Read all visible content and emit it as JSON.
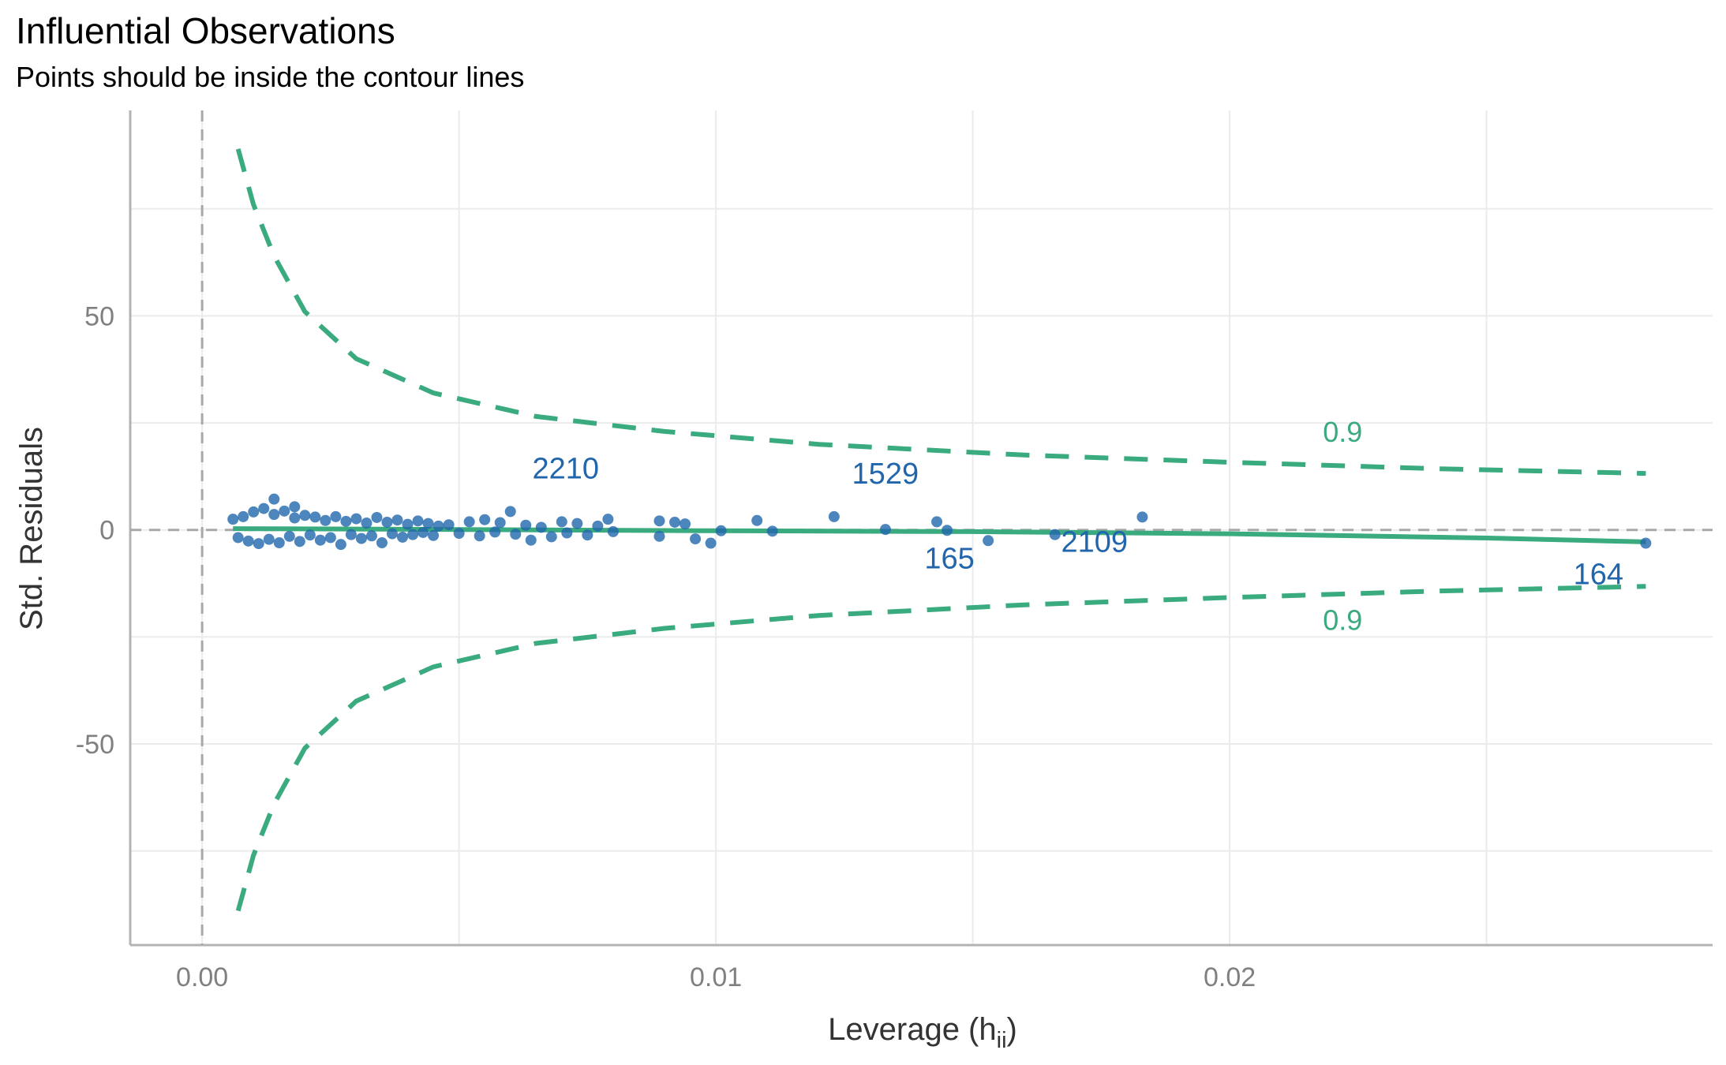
{
  "chart_data": {
    "type": "scatter",
    "title": "Influential Observations",
    "subtitle": "Points should be inside the contour lines",
    "xlabel": "Leverage (h",
    "xlabel_sub": "ii",
    "xlabel_close": ")",
    "ylabel": "Std. Residuals",
    "xlim": [
      -0.0014,
      0.0294
    ],
    "ylim": [
      -97,
      98
    ],
    "x_ticks": [
      0.0,
      0.01,
      0.02
    ],
    "x_tick_labels": [
      "0.00",
      "0.01",
      "0.02"
    ],
    "y_ticks": [
      -50,
      0,
      50
    ],
    "y_tick_labels": [
      "-50",
      "0",
      "50"
    ],
    "grid": true,
    "legend": "none",
    "colors": {
      "points": "#2166ac",
      "label": "#2166ac",
      "contour": "#3aaa7f",
      "fit": "#3aaa7f",
      "reference": "#a8a8a8"
    },
    "points": [
      {
        "x": 0.0006,
        "y": 2.5
      },
      {
        "x": 0.0007,
        "y": -1.8
      },
      {
        "x": 0.0008,
        "y": 3.1
      },
      {
        "x": 0.0009,
        "y": -2.6
      },
      {
        "x": 0.001,
        "y": 4.2
      },
      {
        "x": 0.0011,
        "y": -3.2
      },
      {
        "x": 0.0012,
        "y": 5.0
      },
      {
        "x": 0.0013,
        "y": -2.2
      },
      {
        "x": 0.0014,
        "y": 3.6
      },
      {
        "x": 0.0015,
        "y": -3.0
      },
      {
        "x": 0.0016,
        "y": 4.4
      },
      {
        "x": 0.0017,
        "y": -1.5
      },
      {
        "x": 0.0018,
        "y": 2.8
      },
      {
        "x": 0.0019,
        "y": -2.7
      },
      {
        "x": 0.002,
        "y": 3.4
      },
      {
        "x": 0.0021,
        "y": -1.2
      },
      {
        "x": 0.0014,
        "y": 7.2
      },
      {
        "x": 0.0018,
        "y": 5.4
      },
      {
        "x": 0.0022,
        "y": 3.0
      },
      {
        "x": 0.0023,
        "y": -2.4
      },
      {
        "x": 0.0024,
        "y": 2.2
      },
      {
        "x": 0.0025,
        "y": -1.8
      },
      {
        "x": 0.0026,
        "y": 3.1
      },
      {
        "x": 0.0027,
        "y": -3.4
      },
      {
        "x": 0.0028,
        "y": 2.0
      },
      {
        "x": 0.0029,
        "y": -1.1
      },
      {
        "x": 0.003,
        "y": 2.6
      },
      {
        "x": 0.0031,
        "y": -2.0
      },
      {
        "x": 0.0032,
        "y": 1.6
      },
      {
        "x": 0.0033,
        "y": -1.4
      },
      {
        "x": 0.0034,
        "y": 2.9
      },
      {
        "x": 0.0035,
        "y": -3.0
      },
      {
        "x": 0.0036,
        "y": 1.8
      },
      {
        "x": 0.0037,
        "y": -0.9
      },
      {
        "x": 0.0038,
        "y": 2.3
      },
      {
        "x": 0.0039,
        "y": -1.7
      },
      {
        "x": 0.004,
        "y": 1.3
      },
      {
        "x": 0.0041,
        "y": -1.1
      },
      {
        "x": 0.0042,
        "y": 2.1
      },
      {
        "x": 0.0043,
        "y": -0.6
      },
      {
        "x": 0.0044,
        "y": 1.5
      },
      {
        "x": 0.0045,
        "y": -1.3
      },
      {
        "x": 0.0046,
        "y": 0.9
      },
      {
        "x": 0.0048,
        "y": 1.2
      },
      {
        "x": 0.005,
        "y": -0.8
      },
      {
        "x": 0.0052,
        "y": 1.9
      },
      {
        "x": 0.0054,
        "y": -1.4
      },
      {
        "x": 0.0055,
        "y": 2.4
      },
      {
        "x": 0.0057,
        "y": -0.5
      },
      {
        "x": 0.0058,
        "y": 1.7
      },
      {
        "x": 0.006,
        "y": 4.3
      },
      {
        "x": 0.0061,
        "y": -1.0
      },
      {
        "x": 0.0063,
        "y": 1.1
      },
      {
        "x": 0.0064,
        "y": -2.4
      },
      {
        "x": 0.0066,
        "y": 0.6
      },
      {
        "x": 0.0068,
        "y": -1.6
      },
      {
        "x": 0.007,
        "y": 1.9
      },
      {
        "x": 0.0071,
        "y": -0.7
      },
      {
        "x": 0.0073,
        "y": 1.5
      },
      {
        "x": 0.0075,
        "y": -1.2
      },
      {
        "x": 0.0077,
        "y": 0.9
      },
      {
        "x": 0.0079,
        "y": 2.5
      },
      {
        "x": 0.008,
        "y": -0.4
      },
      {
        "x": 0.0089,
        "y": 2.1
      },
      {
        "x": 0.0089,
        "y": -1.5
      },
      {
        "x": 0.0092,
        "y": 1.8
      },
      {
        "x": 0.0094,
        "y": 1.4
      },
      {
        "x": 0.0096,
        "y": -2.1
      },
      {
        "x": 0.0099,
        "y": -3.1
      },
      {
        "x": 0.0101,
        "y": -0.2
      },
      {
        "x": 0.0108,
        "y": 2.2
      },
      {
        "x": 0.0111,
        "y": -0.3
      },
      {
        "x": 0.0123,
        "y": 3.1
      },
      {
        "x": 0.0133,
        "y": 0.1
      },
      {
        "x": 0.0143,
        "y": 1.9
      },
      {
        "x": 0.0145,
        "y": -0.1
      },
      {
        "x": 0.0153,
        "y": -2.5
      },
      {
        "x": 0.0166,
        "y": -1.1
      },
      {
        "x": 0.0183,
        "y": 3.0
      },
      {
        "x": 0.0281,
        "y": -3.1
      }
    ],
    "point_labels": [
      {
        "text": "2210",
        "x": 0.006,
        "y": 4.3
      },
      {
        "text": "1529",
        "x": 0.0123,
        "y": 3.1
      },
      {
        "text": "165",
        "x": 0.0145,
        "y": -0.1
      },
      {
        "text": "2109",
        "x": 0.0166,
        "y": -1.1
      },
      {
        "text": "164",
        "x": 0.0281,
        "y": -3.1
      }
    ],
    "contour": {
      "label": "0.9",
      "upper": [
        {
          "x": 0.0007,
          "y": 89
        },
        {
          "x": 0.001,
          "y": 76
        },
        {
          "x": 0.0014,
          "y": 64
        },
        {
          "x": 0.002,
          "y": 51
        },
        {
          "x": 0.003,
          "y": 40
        },
        {
          "x": 0.0045,
          "y": 32
        },
        {
          "x": 0.0065,
          "y": 26.5
        },
        {
          "x": 0.009,
          "y": 23
        },
        {
          "x": 0.012,
          "y": 20
        },
        {
          "x": 0.016,
          "y": 17.5
        },
        {
          "x": 0.02,
          "y": 15.8
        },
        {
          "x": 0.024,
          "y": 14.3
        },
        {
          "x": 0.0281,
          "y": 13.2
        }
      ],
      "lower": [
        {
          "x": 0.0007,
          "y": -89
        },
        {
          "x": 0.001,
          "y": -76
        },
        {
          "x": 0.0014,
          "y": -64
        },
        {
          "x": 0.002,
          "y": -51
        },
        {
          "x": 0.003,
          "y": -40
        },
        {
          "x": 0.0045,
          "y": -32
        },
        {
          "x": 0.0065,
          "y": -26.5
        },
        {
          "x": 0.009,
          "y": -23
        },
        {
          "x": 0.012,
          "y": -20
        },
        {
          "x": 0.016,
          "y": -17.5
        },
        {
          "x": 0.02,
          "y": -15.8
        },
        {
          "x": 0.024,
          "y": -14.3
        },
        {
          "x": 0.0281,
          "y": -13.2
        }
      ],
      "label_x": 0.0222,
      "upper_label_y": 23,
      "lower_label_y": -21
    },
    "fit_line": [
      {
        "x": 0.0006,
        "y": 0.3
      },
      {
        "x": 0.005,
        "y": 0.1
      },
      {
        "x": 0.01,
        "y": -0.2
      },
      {
        "x": 0.015,
        "y": -0.4
      },
      {
        "x": 0.02,
        "y": -0.9
      },
      {
        "x": 0.025,
        "y": -1.9
      },
      {
        "x": 0.0281,
        "y": -2.8
      }
    ]
  }
}
